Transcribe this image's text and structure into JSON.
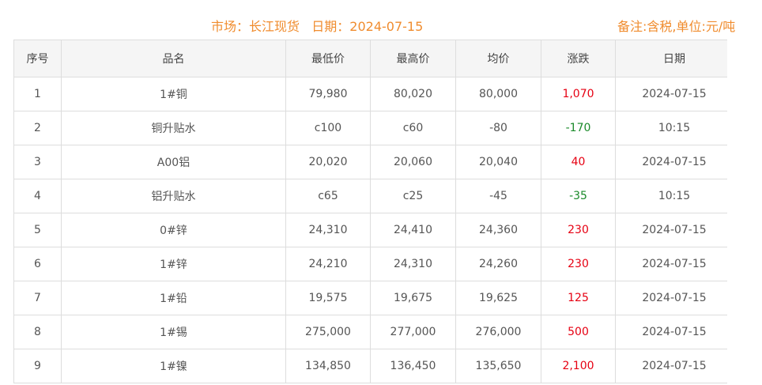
{
  "header": {
    "market": "市场：长江现货",
    "date": "日期：2024-07-15",
    "note": "备注:含税,单位:元/吨"
  },
  "colors": {
    "title": "#f08c2e",
    "up": "#e60012",
    "down": "#1a8a2a"
  },
  "columns": [
    "序号",
    "品名",
    "最低价",
    "最高价",
    "均价",
    "涨跌",
    "日期"
  ],
  "rows": [
    [
      "1",
      "1#铜",
      "79,980",
      "80,020",
      "80,000",
      "1,070",
      "2024-07-15"
    ],
    [
      "2",
      "铜升贴水",
      "c100",
      "c60",
      "-80",
      "-170",
      "10:15"
    ],
    [
      "3",
      "A00铝",
      "20,020",
      "20,060",
      "20,040",
      "40",
      "2024-07-15"
    ],
    [
      "4",
      "铝升贴水",
      "c65",
      "c25",
      "-45",
      "-35",
      "10:15"
    ],
    [
      "5",
      "0#锌",
      "24,310",
      "24,410",
      "24,360",
      "230",
      "2024-07-15"
    ],
    [
      "6",
      "1#锌",
      "24,210",
      "24,310",
      "24,260",
      "230",
      "2024-07-15"
    ],
    [
      "7",
      "1#铅",
      "19,575",
      "19,675",
      "19,625",
      "125",
      "2024-07-15"
    ],
    [
      "8",
      "1#锡",
      "275,000",
      "277,000",
      "276,000",
      "500",
      "2024-07-15"
    ],
    [
      "9",
      "1#镍",
      "134,850",
      "136,450",
      "135,650",
      "2,100",
      "2024-07-15"
    ]
  ]
}
